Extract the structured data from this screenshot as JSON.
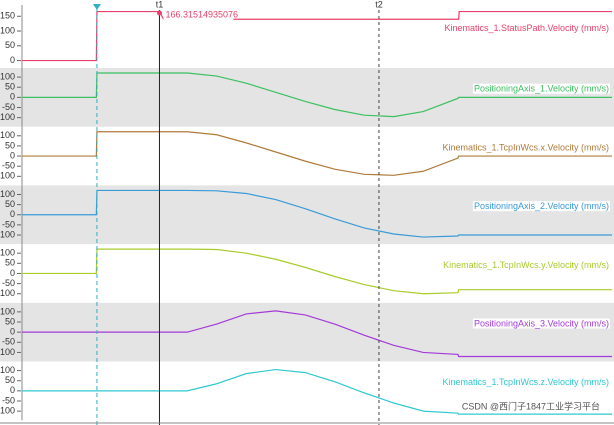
{
  "chart_data": [
    {
      "type": "line",
      "xlim": [
        0,
        100
      ],
      "ylim": [
        -15,
        178
      ],
      "yticks": [
        0,
        50,
        100,
        150
      ],
      "x": [
        0,
        12.6,
        12.7,
        23.3,
        24,
        74,
        74.1,
        100
      ],
      "series": [
        {
          "name": "Kinematics_1.StatusPath.Velocity (mm/s)",
          "color": "#e8406a",
          "values": [
            0,
            0,
            166,
            166,
            140,
            140,
            166,
            166
          ]
        }
      ]
    },
    {
      "type": "line",
      "xlim": [
        0,
        100
      ],
      "ylim": [
        -130,
        130
      ],
      "yticks": [
        -100,
        -50,
        0,
        50,
        100
      ],
      "x": [
        0,
        12.6,
        12.7,
        28,
        33,
        38,
        43,
        48,
        53,
        58,
        63,
        68,
        73.9,
        74,
        100
      ],
      "series": [
        {
          "name": "PositioningAxis_1.Velocity (mm/s)",
          "color": "#3cc060",
          "values": [
            0,
            0,
            120,
            120,
            105,
            70,
            25,
            -20,
            -60,
            -88,
            -95,
            -70,
            -5,
            0,
            0
          ]
        }
      ]
    },
    {
      "type": "line",
      "xlim": [
        0,
        100
      ],
      "ylim": [
        -130,
        130
      ],
      "yticks": [
        -100,
        -50,
        0,
        50,
        100
      ],
      "x": [
        0,
        12.6,
        12.7,
        28,
        33,
        38,
        43,
        48,
        53,
        58,
        63,
        68,
        73.9,
        74,
        100
      ],
      "series": [
        {
          "name": "Kinematics_1.TcpInWcs.x.Velocity (mm/s)",
          "color": "#b07a3a",
          "values": [
            0,
            0,
            120,
            120,
            105,
            65,
            20,
            -25,
            -65,
            -90,
            -95,
            -75,
            -10,
            0,
            0
          ]
        }
      ]
    },
    {
      "type": "line",
      "xlim": [
        0,
        100
      ],
      "ylim": [
        -130,
        130
      ],
      "yticks": [
        -100,
        -50,
        0,
        50,
        100
      ],
      "x": [
        0,
        12.6,
        12.7,
        28,
        33,
        38,
        43,
        48,
        53,
        58,
        63,
        68,
        73.9,
        74,
        100
      ],
      "series": [
        {
          "name": "PositioningAxis_2.Velocity (mm/s)",
          "color": "#3a9ad8",
          "values": [
            0,
            0,
            120,
            120,
            118,
            105,
            75,
            30,
            -20,
            -65,
            -95,
            -110,
            -105,
            -100,
            -100
          ]
        }
      ]
    },
    {
      "type": "line",
      "xlim": [
        0,
        100
      ],
      "ylim": [
        -130,
        130
      ],
      "yticks": [
        -100,
        -50,
        0,
        50,
        100
      ],
      "x": [
        0,
        12.6,
        12.7,
        28,
        33,
        38,
        43,
        48,
        53,
        58,
        63,
        68,
        73.9,
        74,
        100
      ],
      "series": [
        {
          "name": "Kinematics_1.TcpInWcs.y.Velocity (mm/s)",
          "color": "#a8cc2a",
          "values": [
            0,
            0,
            120,
            120,
            118,
            100,
            70,
            30,
            -15,
            -55,
            -85,
            -100,
            -95,
            -80,
            -80
          ]
        }
      ]
    },
    {
      "type": "line",
      "xlim": [
        0,
        100
      ],
      "ylim": [
        -130,
        130
      ],
      "yticks": [
        -100,
        -50,
        0,
        50,
        100
      ],
      "x": [
        0,
        12.6,
        12.7,
        28,
        33,
        38,
        43,
        48,
        53,
        58,
        63,
        68,
        73.9,
        74,
        100
      ],
      "series": [
        {
          "name": "PositioningAxis_3.Velocity (mm/s)",
          "color": "#a43ad8",
          "values": [
            0,
            0,
            0,
            0,
            40,
            90,
            105,
            85,
            40,
            -15,
            -65,
            -100,
            -110,
            -120,
            -120
          ]
        }
      ]
    },
    {
      "type": "line",
      "xlim": [
        0,
        100
      ],
      "ylim": [
        -130,
        130
      ],
      "yticks": [
        -100,
        -50,
        0,
        50,
        100
      ],
      "x": [
        0,
        12.6,
        12.7,
        28,
        33,
        38,
        43,
        48,
        53,
        58,
        63,
        68,
        73.9,
        74,
        100
      ],
      "series": [
        {
          "name": "Kinematics_1.TcpInWcs.z.Velocity (mm/s)",
          "color": "#30c8d0",
          "values": [
            0,
            0,
            0,
            0,
            35,
            85,
            105,
            90,
            45,
            -10,
            -60,
            -100,
            -110,
            -115,
            -115
          ]
        }
      ]
    }
  ],
  "cursors": [
    {
      "label": "t1",
      "x": 23.3
    },
    {
      "label": "t2",
      "x": 60.5
    }
  ],
  "trigger_x": 12.7,
  "readout": "166.31514935076",
  "watermark": "CSDN @西门子1847工业学习平台"
}
